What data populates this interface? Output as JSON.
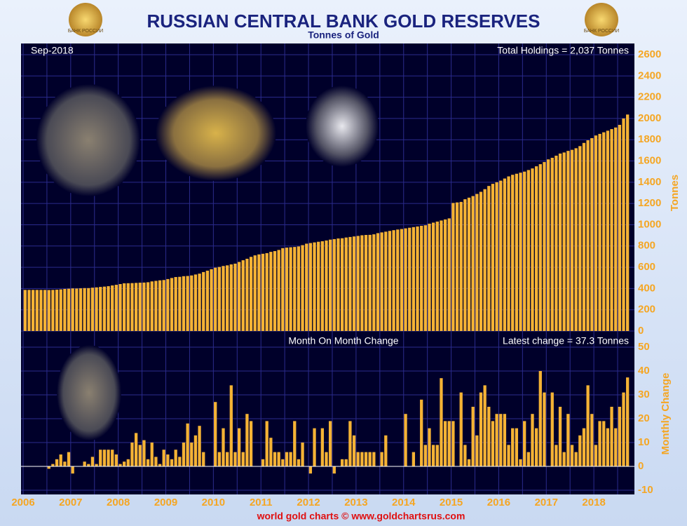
{
  "chart_data": [
    {
      "type": "bar",
      "title": "RUSSIAN CENTRAL BANK GOLD RESERVES",
      "subtitle": "Tonnes of Gold",
      "date_label": "Sep-2018",
      "total_label": "Total Holdings = 2,037 Tonnes",
      "y_label": "Tonnes",
      "color": "#f5b335",
      "grid": true,
      "ylim": [
        0,
        2600
      ],
      "yticks": [
        0,
        200,
        400,
        600,
        800,
        1000,
        1200,
        1400,
        1600,
        1800,
        2000,
        2200,
        2400,
        2600
      ],
      "values": [
        387,
        387,
        387,
        387,
        387,
        387,
        386,
        387,
        389,
        392,
        396,
        398,
        401,
        400,
        402,
        404,
        404,
        408,
        411,
        415,
        418,
        422,
        429,
        435,
        442,
        449,
        450,
        451,
        453,
        455,
        456,
        459,
        467,
        472,
        477,
        480,
        489,
        499,
        508,
        510,
        516,
        518,
        523,
        532,
        540,
        555,
        568,
        582,
        596,
        603,
        612,
        618,
        627,
        634,
        650,
        666,
        680,
        698,
        712,
        721,
        727,
        733,
        745,
        752,
        763,
        780,
        785,
        788,
        791,
        796,
        808,
        822,
        828,
        834,
        840,
        845,
        852,
        860,
        865,
        871,
        873,
        880,
        885,
        890,
        895,
        901,
        904,
        905,
        910,
        921,
        928,
        935,
        942,
        949,
        955,
        960,
        966,
        972,
        978,
        984,
        990,
        995,
        1010,
        1020,
        1030,
        1040,
        1050,
        1060,
        1205,
        1210,
        1215,
        1240,
        1255,
        1270,
        1290,
        1310,
        1335,
        1365,
        1385,
        1400,
        1415,
        1435,
        1455,
        1470,
        1480,
        1490,
        1500,
        1515,
        1530,
        1550,
        1570,
        1590,
        1615,
        1630,
        1650,
        1670,
        1680,
        1695,
        1705,
        1720,
        1740,
        1770,
        1795,
        1815,
        1840,
        1855,
        1870,
        1885,
        1900,
        1915,
        1940,
        2000,
        2037
      ]
    },
    {
      "type": "bar",
      "title": "Month On Month Change",
      "latest_label": "Latest change = 37.3 Tonnes",
      "y_label": "Monthly Change",
      "color": "#f5b335",
      "grid": true,
      "ylim": [
        -10,
        50
      ],
      "yticks": [
        -10,
        0,
        10,
        20,
        30,
        40,
        50
      ],
      "categories": [
        "2006",
        null,
        null,
        null,
        null,
        null,
        null,
        null,
        null,
        null,
        null,
        null,
        "2007",
        null,
        null,
        null,
        null,
        null,
        null,
        null,
        null,
        null,
        null,
        null,
        "2008",
        null,
        null,
        null,
        null,
        null,
        null,
        null,
        null,
        null,
        null,
        null,
        "2009",
        null,
        null,
        null,
        null,
        null,
        null,
        null,
        null,
        null,
        null,
        null,
        "2010",
        null,
        null,
        null,
        null,
        null,
        null,
        null,
        null,
        null,
        null,
        null,
        "2011",
        null,
        null,
        null,
        null,
        null,
        null,
        null,
        null,
        null,
        null,
        null,
        "2012",
        null,
        null,
        null,
        null,
        null,
        null,
        null,
        null,
        null,
        null,
        null,
        "2013",
        null,
        null,
        null,
        null,
        null,
        null,
        null,
        null,
        null,
        null,
        null,
        "2014",
        null,
        null,
        null,
        null,
        null,
        null,
        null,
        null,
        null,
        null,
        null,
        "2015",
        null,
        null,
        null,
        null,
        null,
        null,
        null,
        null,
        null,
        null,
        null,
        "2016",
        null,
        null,
        null,
        null,
        null,
        null,
        null,
        null,
        null,
        null,
        null,
        "2017",
        null,
        null,
        null,
        null,
        null,
        null,
        null,
        null,
        null,
        null,
        null,
        "2018",
        null,
        null,
        null,
        null,
        null,
        null,
        null,
        null
      ],
      "values": [
        0,
        0,
        0,
        0,
        0,
        0,
        -1,
        1,
        3,
        5,
        2,
        6,
        -3,
        0,
        0,
        2,
        1,
        4,
        1,
        7,
        7,
        7,
        7,
        5,
        1,
        2,
        3,
        10,
        14,
        9,
        11,
        3,
        10,
        4,
        1,
        7,
        5,
        3,
        7,
        4,
        10,
        18,
        10,
        13,
        17,
        6,
        0,
        0,
        27,
        6,
        16,
        6,
        34,
        6,
        16,
        6,
        22,
        19,
        0,
        0,
        3,
        19,
        12,
        6,
        6,
        3,
        6,
        6,
        19,
        3,
        10,
        0,
        -3,
        16,
        0,
        16,
        6,
        19,
        -3,
        0,
        3,
        3,
        19,
        13,
        6,
        6,
        6,
        6,
        6,
        0,
        6,
        13,
        0,
        0,
        0,
        0,
        22,
        0,
        6,
        0,
        28,
        9,
        16,
        9,
        9,
        37,
        19,
        19,
        19,
        0,
        31,
        9,
        3,
        25,
        13,
        31,
        34,
        25,
        19,
        22,
        22,
        22,
        9,
        16,
        16,
        3,
        19,
        6,
        22,
        16,
        40,
        31,
        0,
        31,
        9,
        25,
        6,
        22,
        9,
        6,
        13,
        16,
        34,
        22,
        9,
        19,
        19,
        16,
        25,
        16,
        25,
        31,
        37.3
      ]
    }
  ],
  "emblem_text": "БАНК РОССИИ",
  "footer": "world gold charts © www.goldchartsrus.com"
}
